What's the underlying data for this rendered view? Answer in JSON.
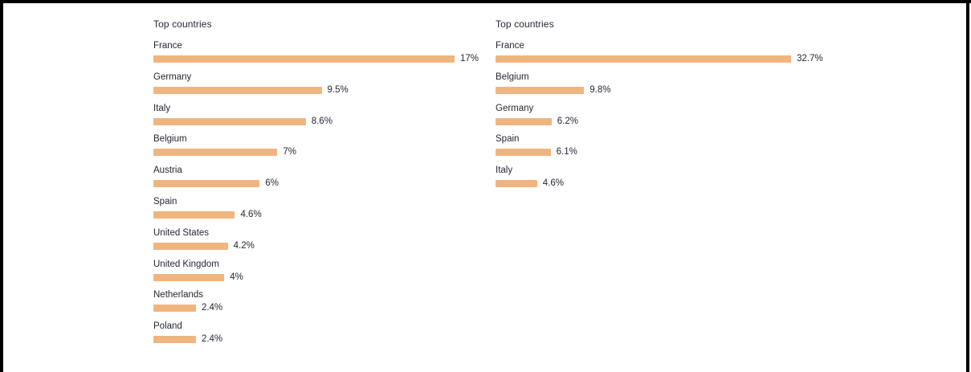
{
  "panels": [
    {
      "title": "Top countries",
      "max_value": 17,
      "rows": [
        {
          "name": "France",
          "value": 17,
          "label": "17%"
        },
        {
          "name": "Germany",
          "value": 9.5,
          "label": "9.5%"
        },
        {
          "name": "Italy",
          "value": 8.6,
          "label": "8.6%"
        },
        {
          "name": "Belgium",
          "value": 7,
          "label": "7%"
        },
        {
          "name": "Austria",
          "value": 6,
          "label": "6%"
        },
        {
          "name": "Spain",
          "value": 4.6,
          "label": "4.6%"
        },
        {
          "name": "United States",
          "value": 4.2,
          "label": "4.2%"
        },
        {
          "name": "United Kingdom",
          "value": 4,
          "label": "4%"
        },
        {
          "name": "Netherlands",
          "value": 2.4,
          "label": "2.4%"
        },
        {
          "name": "Poland",
          "value": 2.4,
          "label": "2.4%"
        }
      ]
    },
    {
      "title": "Top countries",
      "max_value": 32.7,
      "rows": [
        {
          "name": "France",
          "value": 32.7,
          "label": "32.7%"
        },
        {
          "name": "Belgium",
          "value": 9.8,
          "label": "9.8%"
        },
        {
          "name": "Germany",
          "value": 6.2,
          "label": "6.2%"
        },
        {
          "name": "Spain",
          "value": 6.1,
          "label": "6.1%"
        },
        {
          "name": "Italy",
          "value": 4.6,
          "label": "4.6%"
        }
      ]
    }
  ],
  "colors": {
    "bar": "#f0b57f",
    "text": "#1f2430",
    "frame": "#000000"
  }
}
